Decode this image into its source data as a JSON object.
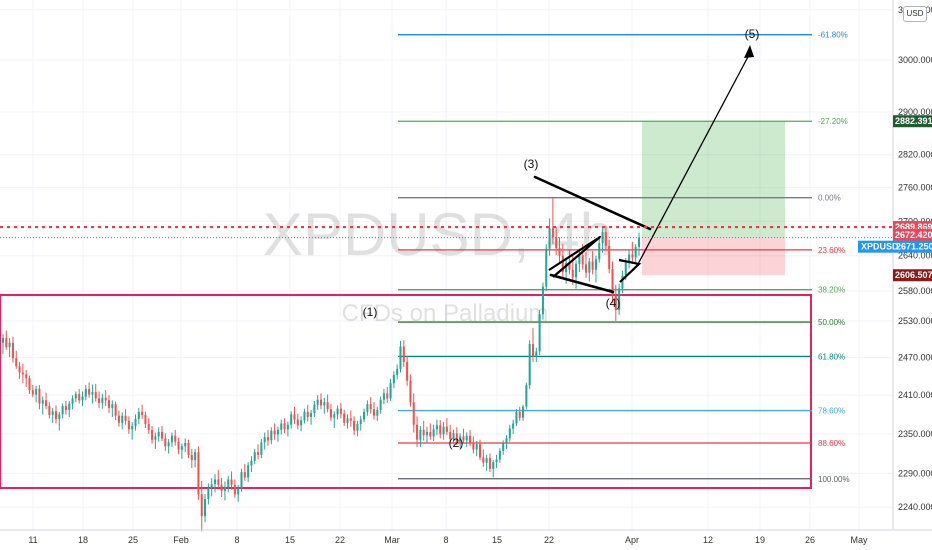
{
  "chart_data": {
    "type": "candlestick",
    "symbol": "XPDUSD, 4h",
    "description": "CFDs on Palladium",
    "currency": "USD",
    "x_ticks": [
      "11",
      "18",
      "25",
      "Feb",
      "8",
      "15",
      "22",
      "Mar",
      "8",
      "15",
      "22",
      "Apr",
      "12",
      "19",
      "26",
      "May"
    ],
    "y_ticks": [
      "2150.000",
      "2190.000",
      "2240.000",
      "2290.000",
      "2350.000",
      "2410.000",
      "2470.000",
      "2530.000",
      "2580.000",
      "2640.000",
      "2700.000",
      "2760.000",
      "2820.000",
      "2900.000",
      "3000.000",
      "3100.000"
    ],
    "y_scale": "log",
    "price_tags": [
      {
        "label": "2882.391",
        "value": 2882.391,
        "color": "#1e5e2e"
      },
      {
        "label": "2689.869",
        "value": 2689.869,
        "color": "#e8495a"
      },
      {
        "label": "2672.420",
        "value": 2672.42,
        "color": "#e8495a"
      },
      {
        "label": "XPDUSD",
        "value": 2671.25,
        "color": "#2196f3",
        "value_label": "2671.250"
      },
      {
        "label": "2606.507",
        "value": 2606.507,
        "color": "#8b1a1a"
      }
    ],
    "fib_levels": [
      {
        "label": "-61.80%",
        "value": 3050,
        "color": "#1e88e5"
      },
      {
        "label": "-27.20%",
        "value": 2882.391,
        "color": "#4caf50"
      },
      {
        "label": "0.00%",
        "value": 2742,
        "color": "#787b86"
      },
      {
        "label": "23.60%",
        "value": 2650,
        "color": "#f23645"
      },
      {
        "label": "38.20%",
        "value": 2582,
        "color": "#4caf50"
      },
      {
        "label": "50.00%",
        "value": 2528,
        "color": "#2e7d32"
      },
      {
        "label": "61.80%",
        "value": 2472,
        "color": "#00897b"
      },
      {
        "label": "78.60%",
        "value": 2386,
        "color": "#42a5f5"
      },
      {
        "label": "88.60%",
        "value": 2336,
        "color": "#f23645"
      },
      {
        "label": "100.00%",
        "value": 2282,
        "color": "#5d606b"
      }
    ],
    "wave_labels": [
      "(1)",
      "(2)",
      "(3)",
      "(4)",
      "(5)"
    ],
    "candles": [
      [
        2494,
        2508,
        2476,
        2502
      ],
      [
        2502,
        2514,
        2483,
        2487
      ],
      [
        2487,
        2502,
        2471,
        2494
      ],
      [
        2494,
        2504,
        2462,
        2469
      ],
      [
        2469,
        2481,
        2452,
        2456
      ],
      [
        2456,
        2463,
        2436,
        2446
      ],
      [
        2446,
        2460,
        2429,
        2443
      ],
      [
        2443,
        2450,
        2423,
        2437
      ],
      [
        2437,
        2441,
        2412,
        2418
      ],
      [
        2418,
        2426,
        2407,
        2411
      ],
      [
        2411,
        2425,
        2399,
        2420
      ],
      [
        2420,
        2426,
        2388,
        2397
      ],
      [
        2397,
        2408,
        2380,
        2402
      ],
      [
        2402,
        2414,
        2388,
        2393
      ],
      [
        2393,
        2399,
        2374,
        2379
      ],
      [
        2379,
        2390,
        2367,
        2385
      ],
      [
        2385,
        2394,
        2366,
        2373
      ],
      [
        2373,
        2384,
        2355,
        2380
      ],
      [
        2380,
        2397,
        2374,
        2393
      ],
      [
        2393,
        2401,
        2380,
        2387
      ],
      [
        2387,
        2401,
        2376,
        2397
      ],
      [
        2397,
        2410,
        2388,
        2405
      ],
      [
        2405,
        2416,
        2399,
        2412
      ],
      [
        2412,
        2420,
        2397,
        2402
      ],
      [
        2402,
        2416,
        2393,
        2408
      ],
      [
        2408,
        2426,
        2402,
        2420
      ],
      [
        2420,
        2430,
        2406,
        2411
      ],
      [
        2411,
        2427,
        2397,
        2415
      ],
      [
        2415,
        2428,
        2400,
        2405
      ],
      [
        2405,
        2416,
        2390,
        2398
      ],
      [
        2398,
        2412,
        2389,
        2406
      ],
      [
        2406,
        2418,
        2393,
        2402
      ],
      [
        2402,
        2410,
        2382,
        2390
      ],
      [
        2390,
        2402,
        2376,
        2396
      ],
      [
        2396,
        2400,
        2371,
        2378
      ],
      [
        2378,
        2386,
        2361,
        2367
      ],
      [
        2367,
        2383,
        2357,
        2378
      ],
      [
        2378,
        2388,
        2364,
        2370
      ],
      [
        2370,
        2377,
        2350,
        2357
      ],
      [
        2357,
        2368,
        2341,
        2362
      ],
      [
        2362,
        2380,
        2355,
        2373
      ],
      [
        2373,
        2390,
        2365,
        2384
      ],
      [
        2384,
        2395,
        2373,
        2379
      ],
      [
        2379,
        2384,
        2359,
        2365
      ],
      [
        2365,
        2374,
        2350,
        2356
      ],
      [
        2356,
        2362,
        2335,
        2341
      ],
      [
        2341,
        2352,
        2327,
        2346
      ],
      [
        2346,
        2360,
        2338,
        2353
      ],
      [
        2353,
        2362,
        2339,
        2343
      ],
      [
        2343,
        2351,
        2324,
        2331
      ],
      [
        2331,
        2342,
        2320,
        2337
      ],
      [
        2337,
        2352,
        2330,
        2347
      ],
      [
        2347,
        2356,
        2332,
        2338
      ],
      [
        2338,
        2344,
        2319,
        2326
      ],
      [
        2326,
        2335,
        2312,
        2331
      ],
      [
        2331,
        2343,
        2322,
        2336
      ],
      [
        2336,
        2341,
        2313,
        2318
      ],
      [
        2318,
        2327,
        2298,
        2310
      ],
      [
        2310,
        2327,
        2299,
        2322
      ],
      [
        2322,
        2331,
        2251,
        2259
      ],
      [
        2259,
        2279,
        2205,
        2227
      ],
      [
        2227,
        2259,
        2218,
        2252
      ],
      [
        2252,
        2275,
        2244,
        2268
      ],
      [
        2268,
        2283,
        2256,
        2274
      ],
      [
        2274,
        2289,
        2262,
        2281
      ],
      [
        2281,
        2295,
        2268,
        2273
      ],
      [
        2273,
        2283,
        2255,
        2264
      ],
      [
        2264,
        2278,
        2250,
        2270
      ],
      [
        2270,
        2286,
        2262,
        2281
      ],
      [
        2281,
        2293,
        2266,
        2273
      ],
      [
        2273,
        2281,
        2254,
        2259
      ],
      [
        2259,
        2273,
        2248,
        2268
      ],
      [
        2268,
        2297,
        2263,
        2292
      ],
      [
        2292,
        2304,
        2279,
        2284
      ],
      [
        2284,
        2307,
        2277,
        2302
      ],
      [
        2302,
        2316,
        2292,
        2309
      ],
      [
        2309,
        2327,
        2304,
        2322
      ],
      [
        2322,
        2334,
        2311,
        2318
      ],
      [
        2318,
        2342,
        2313,
        2337
      ],
      [
        2337,
        2352,
        2326,
        2345
      ],
      [
        2345,
        2356,
        2332,
        2340
      ],
      [
        2340,
        2360,
        2334,
        2355
      ],
      [
        2355,
        2366,
        2341,
        2349
      ],
      [
        2349,
        2361,
        2338,
        2356
      ],
      [
        2356,
        2372,
        2349,
        2366
      ],
      [
        2366,
        2374,
        2351,
        2357
      ],
      [
        2357,
        2369,
        2346,
        2364
      ],
      [
        2364,
        2385,
        2358,
        2380
      ],
      [
        2380,
        2392,
        2365,
        2372
      ],
      [
        2372,
        2381,
        2357,
        2363
      ],
      [
        2363,
        2377,
        2354,
        2371
      ],
      [
        2371,
        2389,
        2366,
        2384
      ],
      [
        2384,
        2395,
        2369,
        2376
      ],
      [
        2376,
        2387,
        2364,
        2382
      ],
      [
        2382,
        2401,
        2376,
        2395
      ],
      [
        2395,
        2410,
        2387,
        2403
      ],
      [
        2403,
        2413,
        2388,
        2394
      ],
      [
        2394,
        2406,
        2381,
        2399
      ],
      [
        2399,
        2411,
        2383,
        2388
      ],
      [
        2388,
        2396,
        2370,
        2375
      ],
      [
        2375,
        2385,
        2359,
        2380
      ],
      [
        2380,
        2394,
        2372,
        2389
      ],
      [
        2389,
        2398,
        2374,
        2381
      ],
      [
        2381,
        2387,
        2362,
        2367
      ],
      [
        2367,
        2380,
        2358,
        2374
      ],
      [
        2374,
        2386,
        2361,
        2370
      ],
      [
        2370,
        2377,
        2348,
        2355
      ],
      [
        2355,
        2370,
        2346,
        2365
      ],
      [
        2365,
        2378,
        2355,
        2372
      ],
      [
        2372,
        2389,
        2368,
        2384
      ],
      [
        2384,
        2402,
        2378,
        2396
      ],
      [
        2396,
        2407,
        2381,
        2388
      ],
      [
        2388,
        2399,
        2372,
        2378
      ],
      [
        2378,
        2392,
        2370,
        2387
      ],
      [
        2387,
        2408,
        2381,
        2403
      ],
      [
        2403,
        2420,
        2396,
        2413
      ],
      [
        2413,
        2423,
        2398,
        2405
      ],
      [
        2405,
        2436,
        2401,
        2429
      ],
      [
        2429,
        2448,
        2421,
        2442
      ],
      [
        2442,
        2459,
        2435,
        2452
      ],
      [
        2452,
        2497,
        2446,
        2488
      ],
      [
        2488,
        2498,
        2455,
        2463
      ],
      [
        2463,
        2472,
        2425,
        2433
      ],
      [
        2433,
        2443,
        2392,
        2399
      ],
      [
        2399,
        2413,
        2352,
        2364
      ],
      [
        2364,
        2377,
        2330,
        2341
      ],
      [
        2341,
        2362,
        2330,
        2356
      ],
      [
        2356,
        2370,
        2340,
        2348
      ],
      [
        2348,
        2361,
        2336,
        2353
      ],
      [
        2353,
        2366,
        2341,
        2346
      ],
      [
        2346,
        2364,
        2339,
        2357
      ],
      [
        2357,
        2372,
        2348,
        2363
      ],
      [
        2363,
        2371,
        2343,
        2349
      ],
      [
        2349,
        2368,
        2341,
        2361
      ],
      [
        2361,
        2374,
        2348,
        2353
      ],
      [
        2353,
        2364,
        2337,
        2342
      ],
      [
        2342,
        2356,
        2334,
        2351
      ],
      [
        2351,
        2360,
        2333,
        2338
      ],
      [
        2338,
        2351,
        2328,
        2346
      ],
      [
        2346,
        2358,
        2336,
        2340
      ],
      [
        2340,
        2352,
        2330,
        2347
      ],
      [
        2347,
        2356,
        2331,
        2336
      ],
      [
        2336,
        2346,
        2320,
        2326
      ],
      [
        2326,
        2339,
        2316,
        2334
      ],
      [
        2334,
        2341,
        2310,
        2314
      ],
      [
        2314,
        2326,
        2300,
        2306
      ],
      [
        2306,
        2318,
        2294,
        2313
      ],
      [
        2313,
        2320,
        2292,
        2297
      ],
      [
        2297,
        2310,
        2284,
        2307
      ],
      [
        2307,
        2318,
        2298,
        2311
      ],
      [
        2311,
        2328,
        2306,
        2324
      ],
      [
        2324,
        2340,
        2318,
        2336
      ],
      [
        2336,
        2348,
        2327,
        2343
      ],
      [
        2343,
        2364,
        2338,
        2358
      ],
      [
        2358,
        2372,
        2350,
        2366
      ],
      [
        2366,
        2388,
        2362,
        2384
      ],
      [
        2384,
        2392,
        2370,
        2375
      ],
      [
        2375,
        2395,
        2370,
        2392
      ],
      [
        2392,
        2430,
        2388,
        2426
      ],
      [
        2426,
        2498,
        2420,
        2492
      ],
      [
        2492,
        2518,
        2463,
        2472
      ],
      [
        2472,
        2486,
        2463,
        2480
      ],
      [
        2480,
        2548,
        2474,
        2541
      ],
      [
        2541,
        2594,
        2532,
        2587
      ],
      [
        2587,
        2660,
        2580,
        2652
      ],
      [
        2652,
        2705,
        2640,
        2688
      ],
      [
        2688,
        2742,
        2660,
        2672
      ],
      [
        2672,
        2690,
        2641,
        2653
      ],
      [
        2653,
        2672,
        2628,
        2640
      ],
      [
        2640,
        2660,
        2600,
        2612
      ],
      [
        2612,
        2636,
        2592,
        2628
      ],
      [
        2628,
        2650,
        2608,
        2616
      ],
      [
        2616,
        2640,
        2590,
        2603
      ],
      [
        2603,
        2632,
        2584,
        2626
      ],
      [
        2626,
        2652,
        2612,
        2641
      ],
      [
        2641,
        2660,
        2616,
        2625
      ],
      [
        2625,
        2646,
        2602,
        2611
      ],
      [
        2611,
        2636,
        2596,
        2630
      ],
      [
        2630,
        2648,
        2608,
        2616
      ],
      [
        2616,
        2640,
        2594,
        2634
      ],
      [
        2634,
        2670,
        2628,
        2662
      ],
      [
        2662,
        2690,
        2645,
        2681
      ],
      [
        2681,
        2692,
        2650,
        2657
      ],
      [
        2657,
        2668,
        2610,
        2617
      ],
      [
        2617,
        2630,
        2560,
        2572
      ],
      [
        2572,
        2590,
        2530,
        2548
      ],
      [
        2548,
        2592,
        2540,
        2584
      ],
      [
        2584,
        2614,
        2576,
        2606
      ],
      [
        2606,
        2636,
        2598,
        2628
      ],
      [
        2628,
        2650,
        2618,
        2642
      ],
      [
        2642,
        2664,
        2630,
        2637
      ],
      [
        2637,
        2660,
        2628,
        2655
      ],
      [
        2655,
        2680,
        2640,
        2671
      ]
    ]
  }
}
